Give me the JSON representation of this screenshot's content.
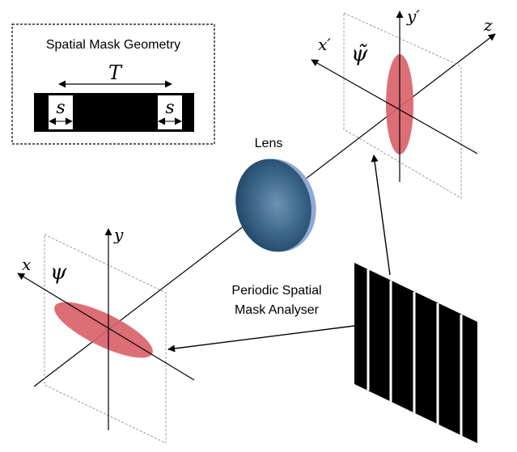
{
  "inset": {
    "title": "Spatial Mask Geometry",
    "period_label": "T",
    "slit_label_left": "s",
    "slit_label_right": "s"
  },
  "input_plane": {
    "x_label": "x",
    "y_label": "y",
    "field_label": "ψ"
  },
  "output_plane": {
    "x_label": "x′",
    "y_label": "y′",
    "z_label": "z",
    "field_label": "ψ̃"
  },
  "lens": {
    "label": "Lens"
  },
  "analyser": {
    "label_line1": "Periodic Spatial",
    "label_line2": "Mask Analyser"
  },
  "colors": {
    "field": "#d9626a",
    "lens": "#3b6688",
    "lens_rim": "#8fa9d6",
    "mask": "#000000",
    "frame": "#9a9a9a"
  }
}
